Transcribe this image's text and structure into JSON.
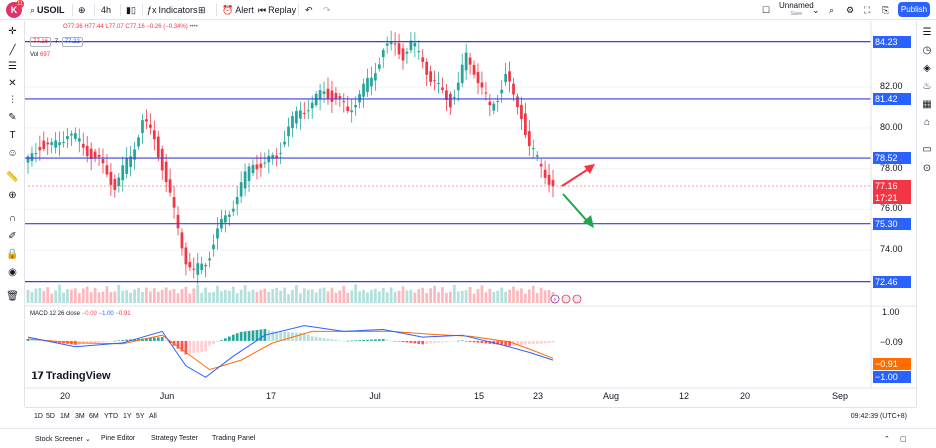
{
  "toolbar": {
    "logo_letter": "K",
    "logo_badge": "11",
    "symbol": "USOIL",
    "interval": "4h",
    "indicators_label": "Indicators",
    "alert_label": "Alert",
    "replay_label": "Replay",
    "layout_name": "Unnamed",
    "layout_status": "Save",
    "publish_label": "Publish"
  },
  "legend": {
    "ohlc": "O77.36 H77.44 L77.07 C77.16 −0.26 (−0.34%)",
    "bid": "77.16",
    "spread": "7",
    "ask": "77.22",
    "vol_label": "Vol",
    "vol_value": "697"
  },
  "macd_legend": {
    "label": "MACD 12 26 close",
    "histogram": "−0.09",
    "macd": "−1.00",
    "signal": "−0.91"
  },
  "brand": "TradingView",
  "chart_data": {
    "type": "candlestick",
    "symbol": "USOIL",
    "interval": "4h",
    "x_ticks": [
      "20",
      "Jun",
      "17",
      "Jul",
      "15",
      "23",
      "Aug",
      "12",
      "20",
      "Sep"
    ],
    "price_ticks": [
      82.0,
      80.0,
      78.0,
      76.0,
      74.0
    ],
    "ylim": [
      72.0,
      84.8
    ],
    "horizontal_levels": [
      84.23,
      81.42,
      78.52,
      75.3,
      72.46
    ],
    "last_price": 77.16,
    "countdown": "17:21",
    "price_path": [
      [
        0,
        78.3
      ],
      [
        3,
        79.2
      ],
      [
        6,
        79.0
      ],
      [
        10,
        79.8
      ],
      [
        14,
        79.1
      ],
      [
        18,
        78.3
      ],
      [
        22,
        77.2
      ],
      [
        26,
        78.6
      ],
      [
        29,
        80.4
      ],
      [
        32,
        79.4
      ],
      [
        34,
        78.2
      ],
      [
        36,
        76.6
      ],
      [
        38,
        75.0
      ],
      [
        40,
        73.6
      ],
      [
        42,
        72.9
      ],
      [
        45,
        73.4
      ],
      [
        48,
        74.9
      ],
      [
        51,
        75.9
      ],
      [
        54,
        77.2
      ],
      [
        57,
        78.3
      ],
      [
        60,
        78.2
      ],
      [
        63,
        78.6
      ],
      [
        66,
        80.0
      ],
      [
        69,
        80.9
      ],
      [
        72,
        81.2
      ],
      [
        75,
        81.8
      ],
      [
        78,
        81.4
      ],
      [
        81,
        80.8
      ],
      [
        84,
        81.7
      ],
      [
        87,
        82.4
      ],
      [
        90,
        83.9
      ],
      [
        93,
        84.0
      ],
      [
        95,
        83.6
      ],
      [
        97,
        84.1
      ],
      [
        100,
        83.4
      ],
      [
        102,
        82.4
      ],
      [
        104,
        81.9
      ],
      [
        107,
        81.3
      ],
      [
        109,
        82.1
      ],
      [
        111,
        83.5
      ],
      [
        113,
        82.9
      ],
      [
        115,
        81.9
      ],
      [
        117,
        80.9
      ],
      [
        119,
        81.6
      ],
      [
        121,
        82.6
      ],
      [
        123,
        81.4
      ],
      [
        125,
        80.7
      ],
      [
        127,
        79.1
      ],
      [
        129,
        78.4
      ],
      [
        131,
        77.8
      ],
      [
        133,
        77.16
      ]
    ],
    "volume_relative": [
      0.55,
      0.3,
      0.45,
      0.62,
      0.35,
      0.5,
      0.28,
      0.4,
      0.6,
      0.33,
      0.48,
      0.38,
      0.52,
      0.3,
      0.44,
      0.58,
      0.36,
      0.47,
      0.3,
      0.42
    ],
    "macd": {
      "histogram_value": -0.09,
      "macd_value": -1.0,
      "signal_value": -0.91,
      "macd_path": [
        [
          0,
          0.2
        ],
        [
          12,
          -0.3
        ],
        [
          24,
          -0.1
        ],
        [
          34,
          0.5
        ],
        [
          40,
          -1.3
        ],
        [
          45,
          -1.9
        ],
        [
          52,
          -0.8
        ],
        [
          60,
          0.3
        ],
        [
          70,
          0.8
        ],
        [
          80,
          0.5
        ],
        [
          90,
          0.6
        ],
        [
          100,
          0.2
        ],
        [
          110,
          0.3
        ],
        [
          120,
          -0.2
        ],
        [
          127,
          -0.6
        ],
        [
          133,
          -1.0
        ]
      ],
      "signal_path": [
        [
          0,
          0.1
        ],
        [
          12,
          -0.1
        ],
        [
          24,
          -0.15
        ],
        [
          34,
          0.3
        ],
        [
          40,
          -0.6
        ],
        [
          46,
          -1.5
        ],
        [
          54,
          -1.0
        ],
        [
          62,
          -0.1
        ],
        [
          72,
          0.5
        ],
        [
          82,
          0.5
        ],
        [
          92,
          0.5
        ],
        [
          102,
          0.35
        ],
        [
          112,
          0.25
        ],
        [
          122,
          -0.05
        ],
        [
          128,
          -0.5
        ],
        [
          133,
          -0.91
        ]
      ]
    },
    "annotations": [
      "up-arrow-red",
      "down-arrow-green"
    ]
  },
  "colors": {
    "up": "#26a69a",
    "down": "#f23645",
    "level_line": "#3f3fd8",
    "macd_line": "#2962ff",
    "signal_line": "#ff6d00",
    "tag_blue": "#2962ff",
    "tag_orange": "#ff6d00",
    "tag_red": "#f23645"
  },
  "range_buttons": [
    "1D",
    "5D",
    "1M",
    "3M",
    "6M",
    "YTD",
    "1Y",
    "5Y",
    "All"
  ],
  "clock": "09:42:39 (UTC+8)",
  "bottom_panel": {
    "stock_screener": "Stock Screener",
    "pine_editor": "Pine Editor",
    "strategy_tester": "Strategy Tester",
    "trading_panel": "Trading Panel"
  },
  "macd_axis": {
    "top_value": "1.00",
    "histogram_tag": "−0.09",
    "signal_tag": "−0.91",
    "macd_tag": "−1.00"
  }
}
